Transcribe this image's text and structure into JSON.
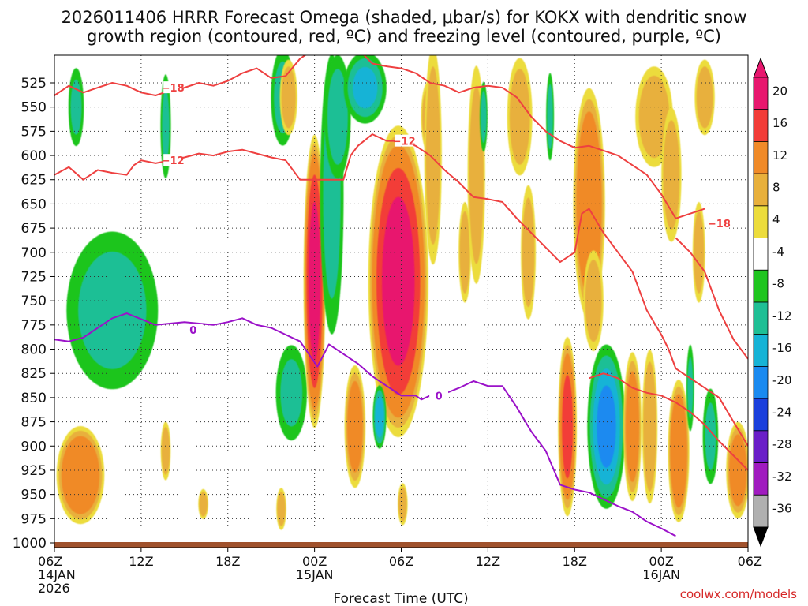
{
  "title": {
    "line1": "2026011406 HRRR Forecast Omega (shaded, μbar/s) for KOKX with dendritic snow",
    "line2": "growth region (contoured, red, ºC) and freezing level (contoured, purple, ºC)"
  },
  "credit": "coolwx.com/models",
  "chart_data": {
    "type": "heatmap",
    "title": "2026011406 HRRR Forecast Omega (shaded, μbar/s) for KOKX",
    "xlabel": "Forecast Time (UTC)",
    "ylabel": "Pressure (mb)",
    "x_unit": "forecast hour",
    "xlim": [
      0,
      48
    ],
    "ylim": [
      1010,
      500
    ],
    "x_ticks": [
      {
        "hour": 0,
        "labels": [
          "06Z",
          "14JAN",
          "2026"
        ]
      },
      {
        "hour": 6,
        "labels": [
          "12Z"
        ]
      },
      {
        "hour": 12,
        "labels": [
          "18Z"
        ]
      },
      {
        "hour": 18,
        "labels": [
          "00Z",
          "15JAN"
        ]
      },
      {
        "hour": 24,
        "labels": [
          "06Z"
        ]
      },
      {
        "hour": 30,
        "labels": [
          "12Z"
        ]
      },
      {
        "hour": 36,
        "labels": [
          "18Z"
        ]
      },
      {
        "hour": 42,
        "labels": [
          "00Z",
          "16JAN"
        ]
      },
      {
        "hour": 48,
        "labels": [
          "06Z"
        ]
      }
    ],
    "y_ticks": [
      525,
      550,
      575,
      600,
      625,
      650,
      675,
      700,
      725,
      750,
      775,
      800,
      825,
      850,
      875,
      900,
      925,
      950,
      975,
      1000
    ],
    "colorbar": {
      "labels": [
        "20",
        "16",
        "12",
        "8",
        "4",
        "-4",
        "-8",
        "-12",
        "-16",
        "-20",
        "-24",
        "-28",
        "-32",
        "-36"
      ],
      "bounds": [
        20,
        16,
        12,
        8,
        4,
        -4,
        -8,
        -12,
        -16,
        -20,
        -24,
        -28,
        -32,
        -36
      ],
      "colors": [
        "#e8176e",
        "#f23c37",
        "#f08a28",
        "#e8b03c",
        "#ecdc3c",
        "#ffffff",
        "#1fc51f",
        "#1fbf95",
        "#16b3d6",
        "#1a8af0",
        "#1a3fdc",
        "#6a1ec8",
        "#a01bbf",
        "#b0b0b0"
      ]
    },
    "omega_blobs": [
      {
        "hour": 1.8,
        "p": 930,
        "rh": 1.8,
        "rp": 55,
        "value": 11
      },
      {
        "hour": 3.5,
        "p": 95,
        "rh": 0.8,
        "rp": 0,
        "value": 0
      },
      {
        "hour": 4.0,
        "p": 760,
        "rh": 3.5,
        "rp": 90,
        "value": -9
      },
      {
        "hour": 1.5,
        "p": 550,
        "rh": 0.6,
        "rp": 45,
        "value": -8
      },
      {
        "hour": 7.7,
        "p": 905,
        "rh": 0.4,
        "rp": 35,
        "value": 6
      },
      {
        "hour": 7.7,
        "p": 570,
        "rh": 0.4,
        "rp": 60,
        "value": -8
      },
      {
        "hour": 10.3,
        "p": 960,
        "rh": 0.4,
        "rp": 18,
        "value": 6
      },
      {
        "hour": 15.8,
        "p": 540,
        "rh": 0.9,
        "rp": 55,
        "value": -9
      },
      {
        "hour": 16.2,
        "p": 540,
        "rh": 0.7,
        "rp": 45,
        "value": 6
      },
      {
        "hour": 16.4,
        "p": 845,
        "rh": 1.2,
        "rp": 55,
        "value": -8
      },
      {
        "hour": 15.7,
        "p": 965,
        "rh": 0.4,
        "rp": 25,
        "value": 6
      },
      {
        "hour": 18.0,
        "p": 730,
        "rh": 0.8,
        "rp": 160,
        "value": 17
      },
      {
        "hour": 19.2,
        "p": 640,
        "rh": 0.9,
        "rp": 160,
        "value": -9
      },
      {
        "hour": 19.6,
        "p": 560,
        "rh": 1.0,
        "rp": 70,
        "value": -10
      },
      {
        "hour": 21.5,
        "p": 530,
        "rh": 1.6,
        "rp": 40,
        "value": -12
      },
      {
        "hour": 20.8,
        "p": 880,
        "rh": 0.8,
        "rp": 70,
        "value": 9
      },
      {
        "hour": 23.8,
        "p": 730,
        "rh": 2.2,
        "rp": 170,
        "value": 17
      },
      {
        "hour": 22.5,
        "p": 870,
        "rh": 0.5,
        "rp": 35,
        "value": -14
      },
      {
        "hour": 24.1,
        "p": 960,
        "rh": 0.4,
        "rp": 25,
        "value": 6
      },
      {
        "hour": 25.8,
        "p": 560,
        "rh": 0.5,
        "rp": 40,
        "value": 6
      },
      {
        "hour": 26.2,
        "p": 600,
        "rh": 0.7,
        "rp": 130,
        "value": 6
      },
      {
        "hour": 28.4,
        "p": 700,
        "rh": 0.5,
        "rp": 60,
        "value": 6
      },
      {
        "hour": 29.2,
        "p": 620,
        "rh": 0.7,
        "rp": 130,
        "value": 6
      },
      {
        "hour": 29.7,
        "p": 560,
        "rh": 0.3,
        "rp": 40,
        "value": -9
      },
      {
        "hour": 32.2,
        "p": 560,
        "rh": 1.0,
        "rp": 70,
        "value": 6
      },
      {
        "hour": 32.8,
        "p": 700,
        "rh": 0.6,
        "rp": 80,
        "value": 6
      },
      {
        "hour": 34.3,
        "p": 560,
        "rh": 0.3,
        "rp": 50,
        "value": -9
      },
      {
        "hour": 35.5,
        "p": 880,
        "rh": 0.7,
        "rp": 100,
        "value": 12
      },
      {
        "hour": 37.0,
        "p": 650,
        "rh": 1.2,
        "rp": 130,
        "value": 11
      },
      {
        "hour": 37.3,
        "p": 750,
        "rh": 0.8,
        "rp": 60,
        "value": 6
      },
      {
        "hour": 38.2,
        "p": 880,
        "rh": 1.4,
        "rp": 90,
        "value": -16
      },
      {
        "hour": 40.0,
        "p": 880,
        "rh": 0.7,
        "rp": 85,
        "value": 9
      },
      {
        "hour": 41.5,
        "p": 560,
        "rh": 1.5,
        "rp": 60,
        "value": 6
      },
      {
        "hour": 42.7,
        "p": 620,
        "rh": 0.8,
        "rp": 80,
        "value": 6
      },
      {
        "hour": 41.2,
        "p": 880,
        "rh": 0.6,
        "rp": 90,
        "value": 7
      },
      {
        "hour": 43.2,
        "p": 905,
        "rh": 0.8,
        "rp": 80,
        "value": 11
      },
      {
        "hour": 44.0,
        "p": 840,
        "rh": 0.3,
        "rp": 50,
        "value": -8
      },
      {
        "hour": 45.0,
        "p": 540,
        "rh": 0.8,
        "rp": 45,
        "value": 6
      },
      {
        "hour": 44.6,
        "p": 700,
        "rh": 0.5,
        "rp": 60,
        "value": 6
      },
      {
        "hour": 45.4,
        "p": 890,
        "rh": 0.6,
        "rp": 55,
        "value": -8
      },
      {
        "hour": 47.3,
        "p": 925,
        "rh": 0.9,
        "rp": 55,
        "value": 9
      }
    ],
    "contours": [
      {
        "name": "freezing-level",
        "value": 0,
        "color": "#9b12c9",
        "points": [
          [
            0,
            790
          ],
          [
            1,
            792
          ],
          [
            2,
            788
          ],
          [
            3,
            778
          ],
          [
            4,
            768
          ],
          [
            5,
            763
          ],
          [
            7,
            775
          ],
          [
            9,
            772
          ],
          [
            11,
            775
          ],
          [
            12,
            772
          ],
          [
            13,
            768
          ],
          [
            14,
            775
          ],
          [
            15,
            778
          ],
          [
            16,
            785
          ],
          [
            17,
            792
          ],
          [
            18.2,
            818
          ],
          [
            19,
            795
          ],
          [
            20,
            805
          ],
          [
            21,
            815
          ],
          [
            22,
            828
          ],
          [
            23,
            838
          ],
          [
            24,
            848
          ],
          [
            25,
            848
          ],
          [
            25.4,
            852
          ],
          [
            26,
            848
          ],
          [
            27,
            846
          ],
          [
            28,
            840
          ],
          [
            29,
            833
          ],
          [
            30,
            838
          ],
          [
            31,
            838
          ],
          [
            32,
            860
          ],
          [
            33,
            885
          ],
          [
            34,
            905
          ],
          [
            35,
            940
          ],
          [
            36,
            945
          ],
          [
            37,
            948
          ],
          [
            38,
            955
          ],
          [
            39,
            962
          ],
          [
            40,
            968
          ],
          [
            41,
            978
          ],
          [
            42,
            985
          ],
          [
            43,
            993
          ]
        ],
        "label": "0",
        "label_at": [
          [
            9.6,
            780
          ],
          [
            26.6,
            848
          ]
        ]
      },
      {
        "name": "dgz-upper-18",
        "value": -18,
        "color": "#ee4040",
        "points": [
          [
            0,
            538
          ],
          [
            1,
            528
          ],
          [
            2,
            535
          ],
          [
            3,
            530
          ],
          [
            4,
            525
          ],
          [
            5,
            528
          ],
          [
            6,
            535
          ],
          [
            7,
            538
          ],
          [
            8,
            533
          ],
          [
            9,
            530
          ],
          [
            10,
            525
          ],
          [
            11,
            528
          ],
          [
            12,
            523
          ],
          [
            13,
            515
          ],
          [
            14,
            510
          ],
          [
            15,
            520
          ],
          [
            16,
            518
          ],
          [
            17,
            500
          ],
          [
            18,
            490
          ],
          [
            20,
            490
          ],
          [
            21,
            490
          ],
          [
            22,
            505
          ],
          [
            23,
            508
          ],
          [
            24,
            510
          ],
          [
            25,
            515
          ],
          [
            26,
            525
          ],
          [
            27,
            528
          ],
          [
            28,
            535
          ],
          [
            29,
            530
          ],
          [
            30,
            528
          ],
          [
            31,
            530
          ],
          [
            32,
            540
          ],
          [
            33,
            560
          ],
          [
            34,
            575
          ],
          [
            35,
            585
          ],
          [
            36,
            592
          ],
          [
            37,
            590
          ],
          [
            38,
            595
          ],
          [
            39,
            600
          ],
          [
            40,
            610
          ],
          [
            41,
            620
          ],
          [
            42,
            640
          ],
          [
            43,
            665
          ],
          [
            44,
            660
          ],
          [
            45,
            655
          ]
        ],
        "label": "-18",
        "label_at": [
          [
            8.2,
            530
          ],
          [
            46.0,
            670
          ]
        ]
      },
      {
        "name": "dgz-lower-12",
        "value": -12,
        "color": "#ee4040",
        "points": [
          [
            0,
            620
          ],
          [
            1,
            612
          ],
          [
            2,
            625
          ],
          [
            3,
            615
          ],
          [
            4,
            618
          ],
          [
            5,
            620
          ],
          [
            5.5,
            610
          ],
          [
            6,
            605
          ],
          [
            7,
            608
          ],
          [
            8,
            605
          ],
          [
            9,
            602
          ],
          [
            10,
            598
          ],
          [
            11,
            600
          ],
          [
            12,
            596
          ],
          [
            13,
            594
          ],
          [
            14,
            598
          ],
          [
            15,
            602
          ],
          [
            16,
            605
          ],
          [
            17,
            625
          ],
          [
            18,
            625
          ],
          [
            19,
            625
          ],
          [
            20,
            625
          ],
          [
            20.5,
            600
          ],
          [
            21,
            590
          ],
          [
            22,
            578
          ],
          [
            23,
            585
          ],
          [
            24,
            585
          ],
          [
            25,
            590
          ],
          [
            26,
            600
          ],
          [
            27,
            615
          ],
          [
            28,
            628
          ],
          [
            29,
            643
          ],
          [
            30,
            645
          ],
          [
            31,
            648
          ],
          [
            32,
            665
          ],
          [
            33,
            680
          ],
          [
            34,
            695
          ],
          [
            35,
            710
          ],
          [
            36,
            700
          ],
          [
            36.5,
            660
          ],
          [
            37,
            655
          ],
          [
            38,
            680
          ],
          [
            39,
            700
          ],
          [
            40,
            720
          ],
          [
            41,
            760
          ],
          [
            42,
            785
          ],
          [
            42.5,
            800
          ],
          [
            43,
            820
          ],
          [
            44,
            830
          ],
          [
            45,
            840
          ],
          [
            46,
            850
          ],
          [
            47,
            875
          ],
          [
            48,
            900
          ]
        ],
        "label": "-12",
        "label_at": [
          [
            8.2,
            605
          ],
          [
            24.2,
            585
          ]
        ]
      },
      {
        "name": "dgz-upper-18b",
        "value": -18,
        "color": "#ee4040",
        "points": [
          [
            37,
            830
          ],
          [
            38,
            825
          ],
          [
            39,
            830
          ],
          [
            40,
            840
          ],
          [
            41,
            845
          ],
          [
            42,
            848
          ],
          [
            43,
            855
          ],
          [
            44,
            865
          ],
          [
            45,
            878
          ],
          [
            46,
            895
          ],
          [
            47,
            910
          ],
          [
            48,
            925
          ]
        ]
      },
      {
        "name": "dgz-right-12",
        "value": -12,
        "color": "#ee4040",
        "points": [
          [
            43,
            685
          ],
          [
            44,
            700
          ],
          [
            45,
            720
          ],
          [
            46,
            760
          ],
          [
            47,
            790
          ],
          [
            48,
            810
          ]
        ]
      }
    ]
  }
}
